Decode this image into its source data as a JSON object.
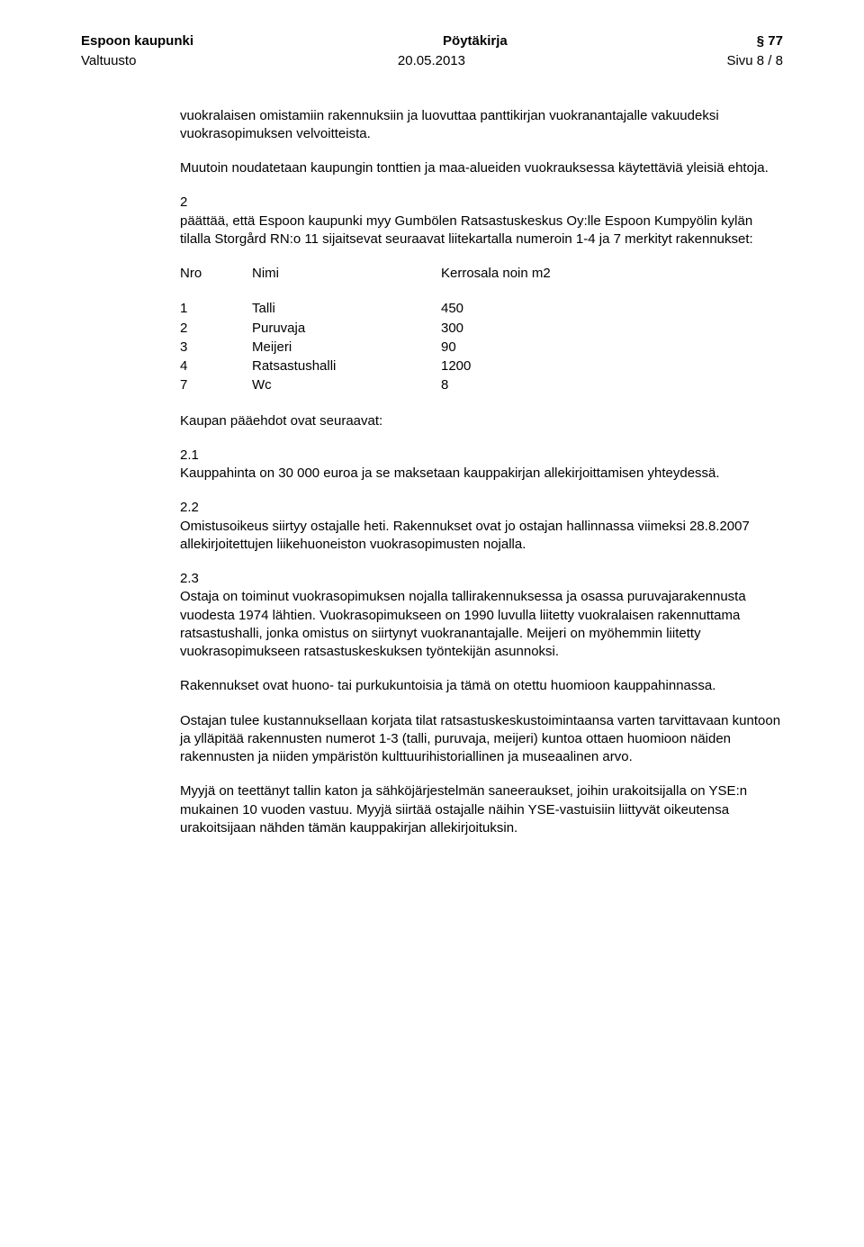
{
  "header": {
    "org": "Espoon kaupunki",
    "doc_type": "Pöytäkirja",
    "section": "§ 77",
    "body": "Valtuusto",
    "date": "20.05.2013",
    "page": "Sivu 8 / 8"
  },
  "para1": "vuokralaisen omistamiin rakennuksiin ja luovuttaa panttikirjan vuokranantajalle vakuudeksi vuokrasopimuksen velvoitteista.",
  "para2": "Muutoin noudatetaan kaupungin tonttien ja maa-alueiden vuokrauksessa käytettäviä yleisiä ehtoja.",
  "section2": {
    "num": "2",
    "text": "päättää, että Espoon kaupunki myy Gumbölen Ratsastuskeskus Oy:lle Espoon Kumpyölin kylän tilalla Storgård RN:o 11 sijaitsevat seuraavat liitekartalla numeroin 1-4 ja 7 merkityt rakennukset:"
  },
  "table_header": {
    "c1": "Nro",
    "c2": "Nimi",
    "c3": "Kerrosala noin m2"
  },
  "rows": [
    {
      "c1": "1",
      "c2": "Talli",
      "c3": "450"
    },
    {
      "c1": "2",
      "c2": "Puruvaja",
      "c3": "300"
    },
    {
      "c1": "3",
      "c2": "Meijeri",
      "c3": "90"
    },
    {
      "c1": "4",
      "c2": "Ratsastushalli",
      "c3": "1200"
    },
    {
      "c1": "7",
      "c2": "Wc",
      "c3": "8"
    }
  ],
  "para3": "Kaupan pääehdot ovat seuraavat:",
  "s21": {
    "num": "2.1",
    "text": "Kauppahinta on 30 000 euroa ja se maksetaan kauppakirjan allekirjoittamisen yhteydessä."
  },
  "s22": {
    "num": "2.2",
    "text": "Omistusoikeus siirtyy ostajalle heti. Rakennukset ovat jo ostajan hallinnassa viimeksi 28.8.2007 allekirjoitettujen liikehuoneiston vuokrasopimusten nojalla."
  },
  "s23": {
    "num": "2.3",
    "text": "Ostaja on toiminut vuokrasopimuksen nojalla tallirakennuksessa ja osassa puruvajarakennusta vuodesta 1974 lähtien. Vuokrasopimukseen on 1990 luvulla liitetty vuokralaisen rakennuttama ratsastushalli, jonka omistus on siirtynyt vuokranantajalle. Meijeri on myöhemmin liitetty vuokrasopimukseen ratsastuskeskuksen työntekijän asunnoksi."
  },
  "para4": "Rakennukset ovat huono- tai purkukuntoisia ja tämä on otettu huomioon kauppahinnassa.",
  "para5": "Ostajan tulee kustannuksellaan korjata tilat ratsastuskeskustoimintaansa varten tarvittavaan kuntoon ja ylläpitää rakennusten numerot 1-3 (talli, puruvaja, meijeri) kuntoa ottaen huomioon näiden rakennusten ja niiden ympäristön kulttuurihistoriallinen ja museaalinen arvo.",
  "para6": "Myyjä on teettänyt tallin katon ja sähköjärjestelmän saneeraukset, joihin urakoitsijalla on YSE:n mukainen 10 vuoden vastuu. Myyjä siirtää ostajalle näihin YSE-vastuisiin liittyvät oikeutensa urakoitsijaan nähden tämän kauppakirjan allekirjoituksin."
}
